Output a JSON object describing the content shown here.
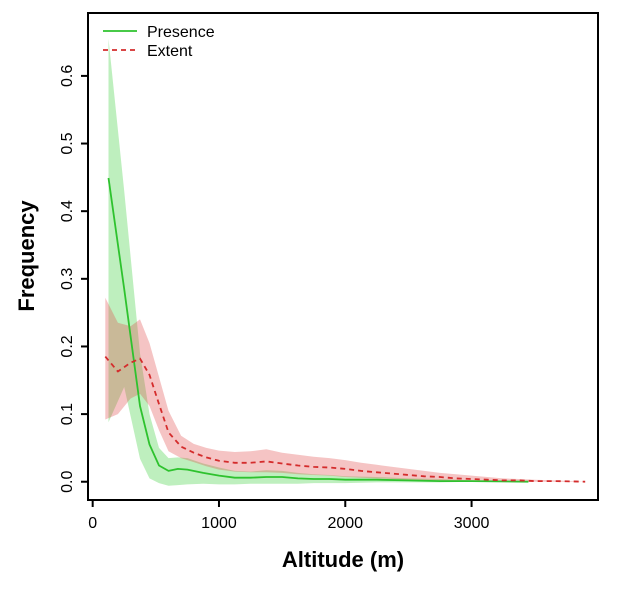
{
  "chart_data": {
    "type": "line",
    "title": "",
    "xlabel": "Altitude (m)",
    "ylabel": "Frequency",
    "xlim": [
      -37,
      4001
    ],
    "ylim": [
      -0.027,
      0.693
    ],
    "xticks": [
      0,
      1000,
      2000,
      3000
    ],
    "xticklabels": [
      "0",
      "1000",
      "2000",
      "3000"
    ],
    "yticks": [
      0.0,
      0.1,
      0.2,
      0.3,
      0.4,
      0.5,
      0.6
    ],
    "yticklabels": [
      "0.0",
      "0.1",
      "0.2",
      "0.3",
      "0.4",
      "0.5",
      "0.6"
    ],
    "grid": false,
    "legend_position": "top-left",
    "series": [
      {
        "name": "Presence",
        "color": "#2ec22e",
        "band_color": "rgba(70,210,70,0.35)",
        "line_style": "solid",
        "x": [
          125,
          250,
          375,
          450,
          525,
          600,
          675,
          750,
          875,
          1000,
          1125,
          1250,
          1375,
          1500,
          1625,
          1750,
          1875,
          2000,
          2250,
          2500,
          2750,
          3000,
          3200,
          3450
        ],
        "y": [
          0.449,
          0.285,
          0.112,
          0.055,
          0.024,
          0.016,
          0.019,
          0.018,
          0.013,
          0.009,
          0.006,
          0.006,
          0.007,
          0.007,
          0.005,
          0.004,
          0.004,
          0.003,
          0.003,
          0.002,
          0.001,
          0.001,
          0.0005,
          0
        ],
        "band_upper": [
          0.655,
          0.43,
          0.19,
          0.1,
          0.05,
          0.035,
          0.036,
          0.035,
          0.027,
          0.021,
          0.016,
          0.015,
          0.017,
          0.016,
          0.013,
          0.011,
          0.01,
          0.008,
          0.007,
          0.005,
          0.004,
          0.002,
          0.001,
          0
        ],
        "band_lower": [
          0.088,
          0.14,
          0.034,
          0.005,
          -0.002,
          -0.006,
          -0.005,
          -0.004,
          -0.003,
          -0.004,
          -0.004,
          -0.003,
          -0.003,
          -0.003,
          -0.003,
          -0.002,
          -0.002,
          -0.002,
          -0.001,
          -0.001,
          -0.001,
          0,
          0,
          0
        ]
      },
      {
        "name": "Extent",
        "color": "#d42c2c",
        "band_color": "rgba(225,70,70,0.32)",
        "line_style": "dashed",
        "x": [
          100,
          200,
          300,
          375,
          450,
          525,
          600,
          700,
          800,
          900,
          1000,
          1125,
          1250,
          1375,
          1500,
          1625,
          1750,
          1875,
          2000,
          2125,
          2250,
          2375,
          2500,
          2625,
          2750,
          2875,
          3000,
          3125,
          3250,
          3375,
          3500,
          3650,
          3800,
          3900
        ],
        "y": [
          0.185,
          0.163,
          0.176,
          0.182,
          0.158,
          0.115,
          0.073,
          0.052,
          0.043,
          0.036,
          0.031,
          0.028,
          0.028,
          0.03,
          0.027,
          0.024,
          0.022,
          0.021,
          0.019,
          0.016,
          0.014,
          0.012,
          0.01,
          0.008,
          0.007,
          0.005,
          0.004,
          0.003,
          0.002,
          0.002,
          0.001,
          0.001,
          0.0005,
          0
        ],
        "band_upper": [
          0.272,
          0.235,
          0.23,
          0.24,
          0.205,
          0.155,
          0.105,
          0.068,
          0.056,
          0.05,
          0.046,
          0.044,
          0.045,
          0.048,
          0.043,
          0.04,
          0.037,
          0.035,
          0.032,
          0.028,
          0.025,
          0.022,
          0.019,
          0.016,
          0.013,
          0.011,
          0.009,
          0.007,
          0.005,
          0.004,
          0.003,
          0.002,
          0.001,
          0
        ],
        "band_lower": [
          0.092,
          0.1,
          0.123,
          0.13,
          0.112,
          0.076,
          0.045,
          0.035,
          0.029,
          0.023,
          0.018,
          0.015,
          0.014,
          0.014,
          0.013,
          0.011,
          0.01,
          0.009,
          0.007,
          0.006,
          0.005,
          0.004,
          0.003,
          0.002,
          0.002,
          0.001,
          0.001,
          0.0005,
          0,
          0,
          0,
          0,
          0,
          0
        ]
      }
    ]
  },
  "colors": {
    "axis": "#000000",
    "background": "#ffffff",
    "presence_line": "#2ec22e",
    "extent_line": "#d42c2c"
  }
}
